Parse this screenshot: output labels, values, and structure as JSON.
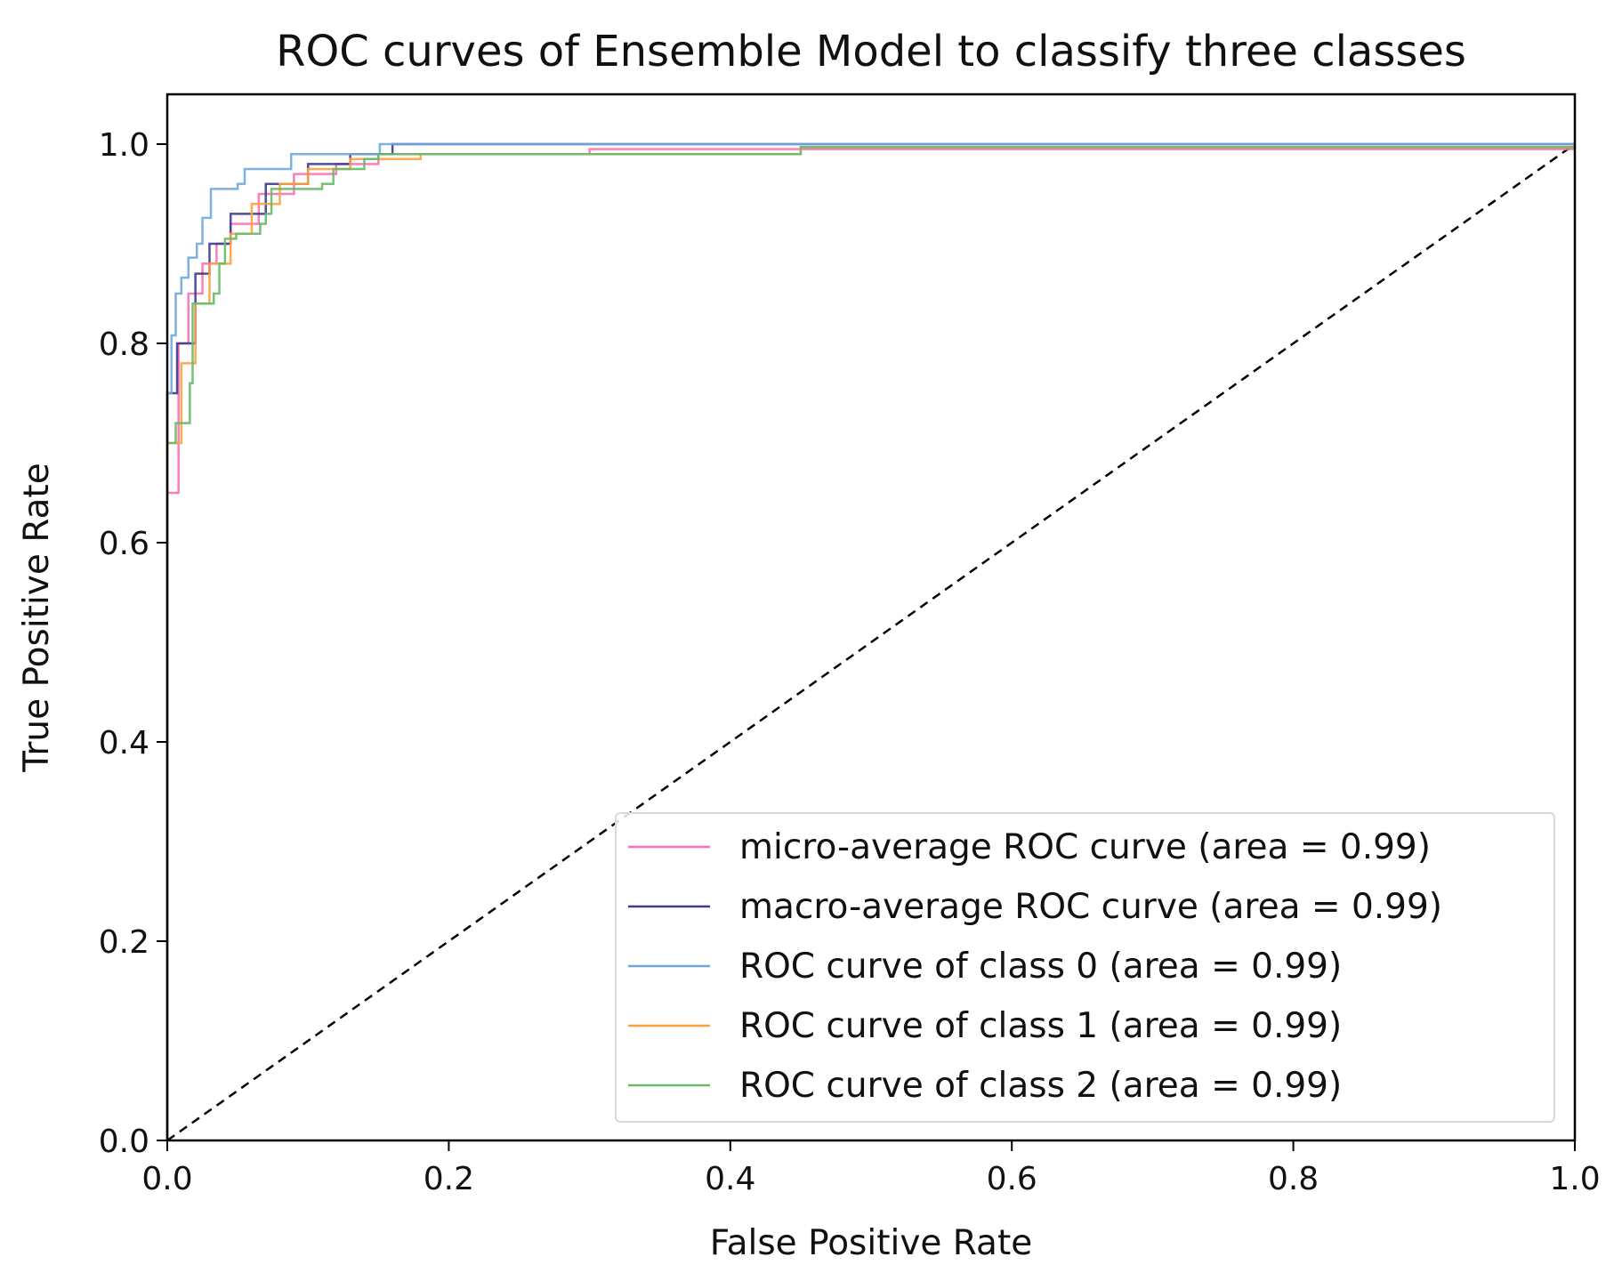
{
  "chart_data": {
    "type": "line",
    "title": "ROC curves of Ensemble Model to classify three classes",
    "xlabel": "False Positive Rate",
    "ylabel": "True Positive Rate",
    "xlim": [
      0.0,
      1.0
    ],
    "ylim": [
      0.0,
      1.05
    ],
    "xticks": [
      "0.0",
      "0.2",
      "0.4",
      "0.6",
      "0.8",
      "1.0"
    ],
    "yticks": [
      "0.0",
      "0.2",
      "0.4",
      "0.6",
      "0.8",
      "1.0"
    ],
    "grid": false,
    "legend_position": "lower-right",
    "series": [
      {
        "name": "micro-average ROC curve (area = 0.99)",
        "color": "#ff6eb4",
        "x": [
          0,
          0,
          0.008,
          0.015,
          0.025,
          0.035,
          0.045,
          0.065,
          0.09,
          0.12,
          0.15,
          0.3,
          1.0
        ],
        "y": [
          0,
          0.65,
          0.8,
          0.85,
          0.88,
          0.9,
          0.92,
          0.95,
          0.97,
          0.98,
          0.99,
          0.995,
          0.995
        ]
      },
      {
        "name": "macro-average ROC curve (area = 0.99)",
        "color": "#3b3b8f",
        "x": [
          0,
          0,
          0.007,
          0.02,
          0.03,
          0.045,
          0.07,
          0.1,
          0.13,
          0.16,
          1.0
        ],
        "y": [
          0,
          0.75,
          0.8,
          0.87,
          0.9,
          0.93,
          0.96,
          0.98,
          0.99,
          1.0,
          1.0
        ]
      },
      {
        "name": "ROC curve of class 0 (area = 0.99)",
        "color": "#6fa8dc",
        "x": [
          0,
          0,
          0.003,
          0.006,
          0.01,
          0.015,
          0.021,
          0.025,
          0.031,
          0.05,
          0.055,
          0.088,
          0.151,
          1.0
        ],
        "y": [
          0,
          0.75,
          0.808,
          0.85,
          0.866,
          0.886,
          0.9,
          0.926,
          0.955,
          0.96,
          0.975,
          0.99,
          1.0,
          1.0
        ]
      },
      {
        "name": "ROC curve of class 1 (area = 0.99)",
        "color": "#ffa040",
        "x": [
          0,
          0,
          0.01,
          0.02,
          0.03,
          0.045,
          0.06,
          0.08,
          0.1,
          0.13,
          0.18,
          0.33,
          0.45,
          1.0
        ],
        "y": [
          0,
          0.7,
          0.78,
          0.84,
          0.88,
          0.91,
          0.94,
          0.96,
          0.975,
          0.985,
          0.99,
          0.99,
          0.997,
          1.0
        ]
      },
      {
        "name": "ROC curve of class 2 (area = 0.99)",
        "color": "#66bb66",
        "x": [
          0,
          0,
          0.006,
          0.016,
          0.018,
          0.033,
          0.037,
          0.041,
          0.049,
          0.066,
          0.07,
          0.074,
          0.11,
          0.118,
          0.14,
          0.15,
          0.45,
          1.0
        ],
        "y": [
          0,
          0.7,
          0.72,
          0.76,
          0.84,
          0.85,
          0.88,
          0.905,
          0.91,
          0.92,
          0.93,
          0.955,
          0.96,
          0.975,
          0.985,
          0.99,
          0.997,
          1.0
        ]
      }
    ],
    "reference_line": {
      "x": [
        0,
        1
      ],
      "y": [
        0,
        1
      ],
      "color": "#000000",
      "style": "dashed"
    }
  }
}
